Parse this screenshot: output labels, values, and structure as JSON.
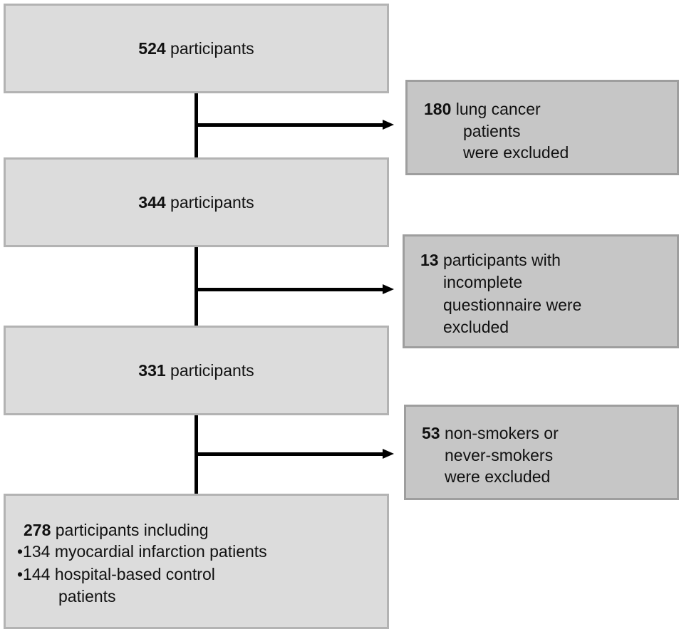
{
  "boxes": [
    {
      "number": "524",
      "text": " participants"
    },
    {
      "number": "344",
      "text": " participants"
    },
    {
      "number": "331",
      "text": " participants"
    }
  ],
  "final_box": {
    "number": "278",
    "text": " participants including",
    "bullet1": "•134 myocardial infarction patients",
    "bullet2": "•144 hospital-based control",
    "bullet2_cont": "patients"
  },
  "exclusions": [
    {
      "number": "180",
      "line1": " lung cancer",
      "line2": "patients",
      "line3": "were excluded"
    },
    {
      "number": "13",
      "line1": " participants with",
      "line2": "incomplete",
      "line3": "questionnaire were",
      "line4": "excluded"
    },
    {
      "number": "53",
      "line1": " non-smokers or",
      "line2": "never-smokers",
      "line3": "were excluded"
    }
  ]
}
